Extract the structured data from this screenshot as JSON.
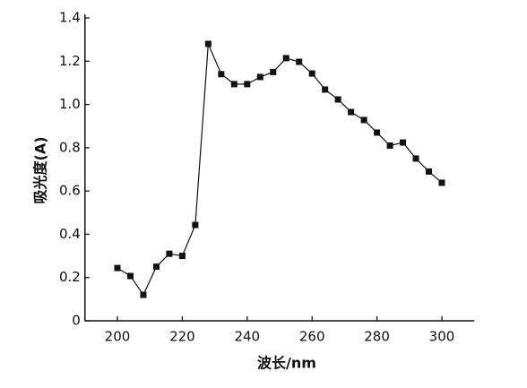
{
  "chart_data": {
    "type": "line",
    "x": [
      200,
      204,
      208,
      212,
      216,
      220,
      224,
      228,
      232,
      236,
      240,
      244,
      248,
      252,
      256,
      260,
      264,
      268,
      272,
      276,
      280,
      284,
      288,
      292,
      296,
      300
    ],
    "series": [
      {
        "color": "#111111",
        "values": [
          0.244,
          0.207,
          0.12,
          0.25,
          0.31,
          0.3,
          0.443,
          1.28,
          1.14,
          1.094,
          1.094,
          1.127,
          1.15,
          1.214,
          1.197,
          1.143,
          1.069,
          1.023,
          0.965,
          0.928,
          0.87,
          0.81,
          0.824,
          0.75,
          0.69,
          0.638
        ]
      }
    ],
    "xlabel": "波长/nm",
    "ylabel": "吸光度(A)",
    "xlim": [
      190,
      310
    ],
    "ylim": [
      0,
      1.4
    ],
    "xticks": [
      200,
      220,
      240,
      260,
      280,
      300
    ],
    "yticks": [
      0,
      0.2,
      0.4,
      0.6,
      0.8,
      {
        "value": 1,
        "label": "1.0"
      },
      1.2,
      1.4
    ]
  }
}
